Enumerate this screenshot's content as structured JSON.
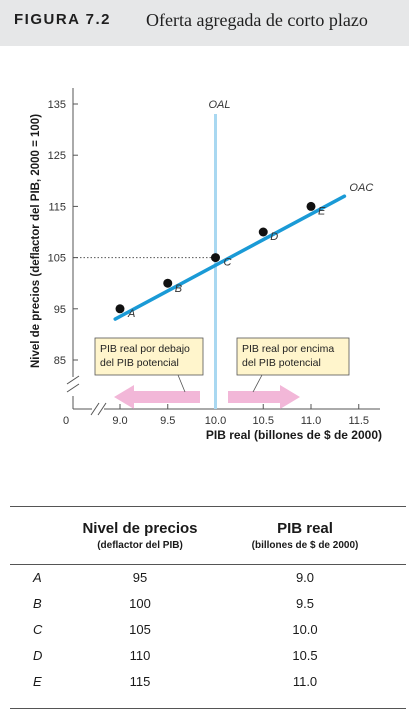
{
  "figure": {
    "label": "FIGURA 7.2",
    "title": "Oferta agregada de corto plazo"
  },
  "chart_data": {
    "type": "line",
    "xlabel": "PIB real (billones de $ de 2000)",
    "ylabel": "Nivel de precios (deflactor del PIB, 2000 = 100)",
    "x_ticks": [
      "9.0",
      "9.5",
      "10.0",
      "10.5",
      "11.0",
      "11.5"
    ],
    "y_ticks": [
      "85",
      "95",
      "105",
      "115",
      "125",
      "135"
    ],
    "origin_label": "0",
    "xlim": [
      8.75,
      11.75
    ],
    "ylim": [
      83,
      138
    ],
    "grid": false,
    "series": [
      {
        "name": "OAC",
        "x": [
          8.95,
          11.35
        ],
        "y": [
          93,
          117
        ],
        "color": "#1a9ad6"
      }
    ],
    "points": [
      {
        "label": "A",
        "x": 9.0,
        "y": 95
      },
      {
        "label": "B",
        "x": 9.5,
        "y": 100
      },
      {
        "label": "C",
        "x": 10.0,
        "y": 105
      },
      {
        "label": "D",
        "x": 10.5,
        "y": 110
      },
      {
        "label": "E",
        "x": 11.0,
        "y": 115
      }
    ],
    "vertical_line": {
      "name": "OAL",
      "x": 10.0,
      "color": "#a9d8f1"
    },
    "reference_y": 105,
    "annotations": [
      {
        "text_lines": [
          "PIB real por debajo",
          "del PIB potencial"
        ],
        "side": "left"
      },
      {
        "text_lines": [
          "PIB real por encima",
          "del PIB potencial"
        ],
        "side": "right"
      }
    ],
    "arrow_color": "#f2b7d8",
    "box_color": "#fff5cc"
  },
  "table": {
    "headers": [
      {
        "main": "Nivel de precios",
        "sub": "(deflactor del PIB)"
      },
      {
        "main": "PIB real",
        "sub": "(billones de $ de 2000)"
      }
    ],
    "rows": [
      {
        "label": "A",
        "price": "95",
        "gdp": "9.0"
      },
      {
        "label": "B",
        "price": "100",
        "gdp": "9.5"
      },
      {
        "label": "C",
        "price": "105",
        "gdp": "10.0"
      },
      {
        "label": "D",
        "price": "110",
        "gdp": "10.5"
      },
      {
        "label": "E",
        "price": "115",
        "gdp": "11.0"
      }
    ]
  }
}
